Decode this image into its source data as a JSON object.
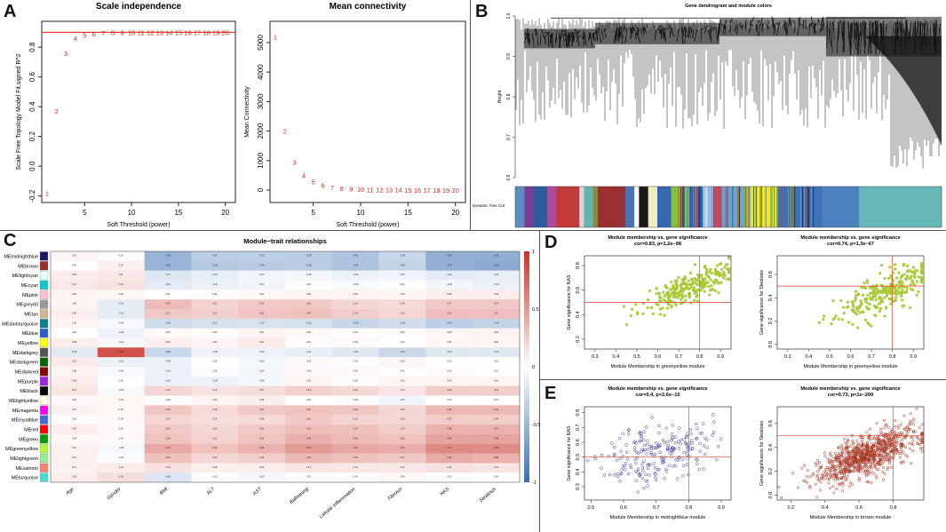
{
  "panel_labels": {
    "a": "A",
    "b": "B",
    "c": "C",
    "d": "D",
    "e": "E"
  },
  "colors": {
    "redline": "#e8442a",
    "point_red": "#d62a1e",
    "yellowgreen": "#b3d63a",
    "yellowgreen_stroke": "#98bd2a",
    "midnightblue_stroke": "#4a3f9a",
    "brown_stroke": "#a8321e",
    "heat_neg": "#3b6fb0",
    "heat_pos": "#c83227"
  },
  "chart_data": [
    {
      "id": "scale-independence",
      "type": "scatter",
      "title": "Scale independence",
      "xlabel": "Soft Threshold (power)",
      "ylabel": "Scale Free Topology Model Fit,signed R^2",
      "xlim": [
        1,
        20.5
      ],
      "ylim": [
        -0.22,
        0.95
      ],
      "xticks": [
        "5",
        "10",
        "15",
        "20"
      ],
      "yticks": [
        "-0.2",
        "0.0",
        "0.2",
        "0.4",
        "0.6",
        "0.8"
      ],
      "hline": 0.9,
      "x": [
        1,
        2,
        3,
        4,
        5,
        6,
        7,
        8,
        9,
        10,
        11,
        12,
        13,
        14,
        15,
        16,
        17,
        18,
        19,
        20
      ],
      "y": [
        -0.18,
        0.37,
        0.76,
        0.86,
        0.88,
        0.89,
        0.895,
        0.9,
        0.9,
        0.9,
        0.9,
        0.9,
        0.9,
        0.9,
        0.9,
        0.9,
        0.9,
        0.9,
        0.9,
        0.9
      ]
    },
    {
      "id": "mean-connectivity",
      "type": "scatter",
      "title": "Mean connectivity",
      "xlabel": "Soft Threshold (power)",
      "ylabel": "Mean Connectivity",
      "xlim": [
        1,
        20.5
      ],
      "ylim": [
        -300,
        5600
      ],
      "xticks": [
        "5",
        "10",
        "15",
        "20"
      ],
      "yticks": [
        "0",
        "1000",
        "2000",
        "3000",
        "4000",
        "5000"
      ],
      "x": [
        1,
        2,
        3,
        4,
        5,
        6,
        7,
        8,
        9,
        10,
        11,
        12,
        13,
        14,
        15,
        16,
        17,
        18,
        19,
        20
      ],
      "y": [
        5200,
        2000,
        950,
        500,
        280,
        160,
        95,
        60,
        40,
        28,
        20,
        15,
        12,
        9,
        7,
        6,
        5,
        4,
        3,
        2
      ]
    },
    {
      "id": "dendrogram",
      "type": "dendrogram",
      "title": "Gene dendrogram and module colors",
      "ylabel": "Height",
      "yticks": [
        "1.0",
        "0.9",
        "0.8",
        "0.7",
        "0.6"
      ],
      "ylim": [
        0.6,
        1.0
      ],
      "color_bar_label": "Dynamic Tree Cut",
      "module_segments": [
        {
          "color": "#5a8fc0",
          "w": 2
        },
        {
          "color": "#7a3b9a",
          "w": 2
        },
        {
          "color": "#2a5d9e",
          "w": 3
        },
        {
          "color": "#b04a9b",
          "w": 2
        },
        {
          "color": "#c23a3a",
          "w": 5
        },
        {
          "color": "#d7d7d7",
          "w": 1
        },
        {
          "color": "#66b3b0",
          "w": 2
        },
        {
          "color": "#8b8b3a",
          "w": 1
        },
        {
          "color": "#9a3030",
          "w": 6
        },
        {
          "color": "#4876b5",
          "w": 2
        },
        {
          "color": "#ffffff",
          "w": 1
        },
        {
          "color": "#191919",
          "w": 2
        },
        {
          "color": "#eeeec0",
          "w": 2
        },
        {
          "color": "#3568b0",
          "w": 3
        },
        {
          "color": "#88c03a",
          "w": 4
        },
        {
          "color": "#2f63a8",
          "w": 3
        },
        {
          "color": "#c0d7ee",
          "w": 2
        },
        {
          "color": "#c04a60",
          "w": 2
        },
        {
          "color": "#6aa4d0",
          "w": 5
        },
        {
          "color": "#f0e52e",
          "w": 7
        },
        {
          "color": "#3f73b6",
          "w": 10
        },
        {
          "color": "#4c82bf",
          "w": 8
        },
        {
          "color": "#66b8b6",
          "w": 18
        }
      ]
    },
    {
      "id": "module-trait",
      "type": "heatmap",
      "title": "Module−trait relationships",
      "columns": [
        "Age",
        "Gender",
        "BMI",
        "ALT",
        "AST",
        "Ballooning",
        "Lobular inflammation",
        "Fibrosis",
        "NAS",
        "Steatosis"
      ],
      "rows": [
        "MEmidnightblue",
        "MEbrown",
        "MElightcyan",
        "MEcyan",
        "MEpink",
        "MEgrey60",
        "MEtan",
        "MEdarkturquoise",
        "MEblue",
        "MEyellow",
        "MEdarkgrey",
        "MEdarkgreen",
        "MEdarkred",
        "MEpurple",
        "MEblack",
        "MElightyellow",
        "MEmagenta",
        "MEroyalblue",
        "MEred",
        "MEgreen",
        "MEgreenyellow",
        "MElightgreen",
        "MEsalmon",
        "MEturquoise"
      ],
      "row_colors": [
        "#191970",
        "#a52a2a",
        "#e0ffff",
        "#00cdcd",
        "#ffc0cb",
        "#999999",
        "#d2b48c",
        "#00868b",
        "#2a5bd7",
        "#ffff00",
        "#555555",
        "#006400",
        "#8b0000",
        "#a020f0",
        "#000000",
        "#ffffe0",
        "#ff00ff",
        "#4169e1",
        "#ff0000",
        "#00a000",
        "#adff2f",
        "#90ee90",
        "#fa8072",
        "#40e0d0"
      ],
      "values": [
        [
          0.05,
          0.02,
          -0.53,
          -0.35,
          -0.33,
          -0.35,
          -0.41,
          -0.28,
          -0.55,
          -0.56
        ],
        [
          0.0,
          0.07,
          -0.52,
          -0.38,
          -0.36,
          -0.35,
          -0.42,
          -0.3,
          -0.55,
          -0.58
        ],
        [
          0.09,
          0.11,
          -0.17,
          -0.12,
          -0.07,
          -0.06,
          -0.09,
          -0.07,
          -0.14,
          -0.11
        ],
        [
          0.11,
          0.14,
          -0.14,
          -0.1,
          -0.07,
          0.02,
          -0.04,
          0.01,
          -0.06,
          -0.1
        ],
        [
          0.05,
          0.04,
          0.01,
          0.02,
          0.04,
          0.06,
          0.06,
          0.05,
          0.08,
          0.09
        ],
        [
          0.05,
          -0.13,
          0.33,
          0.21,
          0.27,
          0.26,
          0.2,
          0.18,
          0.27,
          0.27
        ],
        [
          0.09,
          -0.13,
          0.27,
          0.23,
          0.29,
          0.3,
          0.24,
          0.2,
          0.31,
          0.31
        ],
        [
          0.05,
          -0.04,
          -0.25,
          -0.21,
          -0.2,
          -0.21,
          -0.29,
          -0.24,
          -0.33,
          -0.3
        ],
        [
          0.0,
          -0.08,
          0.04,
          0.02,
          0.05,
          0.04,
          0.02,
          0.02,
          0.05,
          0.06
        ],
        [
          0.09,
          -0.04,
          0.08,
          0.06,
          0.1,
          0.02,
          0.03,
          0.0,
          0.04,
          0.05
        ],
        [
          -0.15,
          0.85,
          -0.28,
          -0.08,
          -0.09,
          -0.11,
          -0.16,
          -0.27,
          -0.16,
          -0.16
        ],
        [
          0.1,
          -0.1,
          -0.09,
          -0.01,
          -0.05,
          0.03,
          0.01,
          0.05,
          0.0,
          -0.01
        ],
        [
          0.06,
          -0.04,
          -0.1,
          -0.02,
          -0.06,
          0.03,
          0.03,
          0.01,
          0.02,
          0.01
        ],
        [
          0.09,
          0.0,
          -0.1,
          -0.09,
          -0.05,
          0.05,
          0.02,
          0.05,
          0.05,
          0.06
        ],
        [
          0.13,
          -0.04,
          0.2,
          0.14,
          0.17,
          0.23,
          0.19,
          0.13,
          0.24,
          0.24
        ],
        [
          0.03,
          0.04,
          -0.02,
          0.06,
          0.08,
          0.0,
          -0.03,
          -0.07,
          0.0,
          -0.01
        ],
        [
          0.07,
          0.04,
          0.28,
          0.18,
          0.27,
          0.3,
          0.28,
          0.2,
          0.34,
          0.34
        ],
        [
          0.02,
          0.04,
          0.2,
          0.16,
          0.18,
          0.26,
          0.21,
          0.2,
          0.25,
          0.24
        ],
        [
          0.09,
          0.03,
          0.26,
          0.2,
          0.26,
          0.31,
          0.3,
          0.24,
          0.38,
          0.37
        ],
        [
          0.04,
          0.03,
          0.29,
          0.22,
          0.29,
          0.38,
          0.33,
          0.3,
          0.44,
          0.44
        ],
        [
          0.07,
          -0.05,
          0.42,
          0.3,
          0.38,
          0.49,
          0.43,
          0.4,
          0.57,
          0.56
        ],
        [
          0.07,
          -0.03,
          0.3,
          0.2,
          0.24,
          0.34,
          0.3,
          0.27,
          0.41,
          0.38
        ],
        [
          0.07,
          0.1,
          0.14,
          0.08,
          0.09,
          0.13,
          0.12,
          0.11,
          0.14,
          0.13
        ],
        [
          0.09,
          0.16,
          -0.18,
          -0.02,
          -0.05,
          0.01,
          0.01,
          0.04,
          0.01,
          0.0
        ]
      ],
      "colorbar_ticks": [
        "1",
        "0.5",
        "0",
        "-0.5",
        "-1"
      ]
    },
    {
      "id": "d-left",
      "type": "scatter",
      "title": "Module membership vs. gene significance",
      "subtitle": "cor=0.83, p=1.2e−98",
      "xlabel": "Module Membership in greenyellow module",
      "ylabel": "Gene significance for  NAS",
      "xlim": [
        0.25,
        0.95
      ],
      "ylim": [
        0.12,
        0.88
      ],
      "xticks": [
        "0.3",
        "0.4",
        "0.5",
        "0.6",
        "0.7",
        "0.8",
        "0.9"
      ],
      "yticks": [
        "0.2",
        "0.4",
        "0.6",
        "0.8"
      ],
      "vline": 0.8,
      "hline": 0.5,
      "n_points": 260,
      "correlation": 0.83
    },
    {
      "id": "d-right",
      "type": "scatter",
      "title": "Module membership vs. gene significance",
      "subtitle": "cor=0.74, p=1.3e−67",
      "xlabel": "Module Membership in greenyellow module",
      "ylabel": "Gene significance for  Steatosis",
      "xlim": [
        0.25,
        0.95
      ],
      "ylim": [
        -0.04,
        0.76
      ],
      "xticks": [
        "0.3",
        "0.4",
        "0.5",
        "0.6",
        "0.7",
        "0.8",
        "0.9"
      ],
      "yticks": [
        "0.0",
        "0.2",
        "0.4",
        "0.6"
      ],
      "vline": 0.8,
      "hline": 0.5,
      "n_points": 260,
      "correlation": 0.74
    },
    {
      "id": "e-left",
      "type": "scatter",
      "title": "Module membership vs. gene significance",
      "subtitle": "cor=0.4, p=2.6e−10",
      "xlabel": "Module Membership in midnightblue module",
      "ylabel": "Gene significance for  NAS",
      "xlim": [
        0.48,
        0.93
      ],
      "ylim": [
        0.21,
        0.84
      ],
      "xticks": [
        "0.5",
        "0.6",
        "0.7",
        "0.8",
        "0.9"
      ],
      "yticks": [
        "0.3",
        "0.4",
        "0.5",
        "0.6",
        "0.7",
        "0.8"
      ],
      "vline": 0.8,
      "hline": 0.5,
      "n_points": 220,
      "correlation": 0.4
    },
    {
      "id": "e-right",
      "type": "scatter",
      "title": "Module membership vs. gene significance",
      "subtitle": "cor=0.73, p=1e−200",
      "xlabel": "Module Membership in brown module",
      "ylabel": "Gene significance for  Steatosis",
      "xlim": [
        0.12,
        0.98
      ],
      "ylim": [
        -0.04,
        0.74
      ],
      "xticks": [
        "0.2",
        "0.4",
        "0.6",
        "0.8"
      ],
      "yticks": [
        "0.0",
        "0.2",
        "0.4",
        "0.6"
      ],
      "vline": 0.8,
      "hline": 0.5,
      "n_points": 900,
      "correlation": 0.73
    }
  ]
}
